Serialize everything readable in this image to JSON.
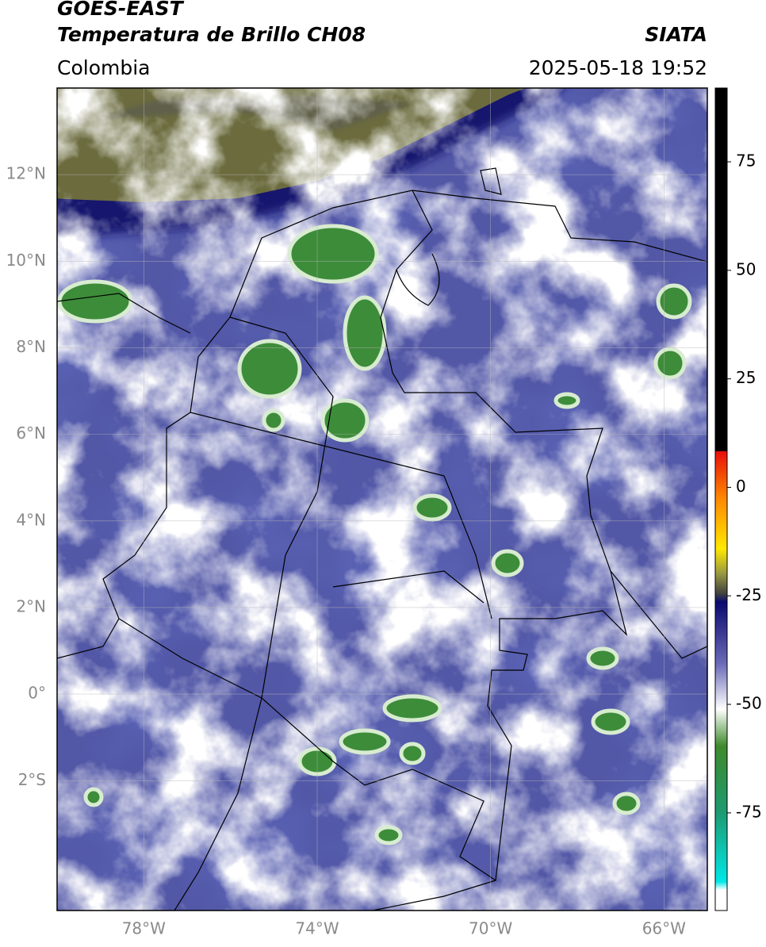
{
  "header": {
    "satellite": "GOES-EAST",
    "product": "Temperatura de Brillo CH08",
    "source": "SIATA",
    "region": "Colombia",
    "datetime": "2025-05-18 19:52"
  },
  "map": {
    "lon_range": [
      -80,
      -65
    ],
    "lat_range": [
      -5,
      14
    ],
    "lat_ticks": [
      {
        "value": 12,
        "label": "12°N"
      },
      {
        "value": 10,
        "label": "10°N"
      },
      {
        "value": 8,
        "label": "8°N"
      },
      {
        "value": 6,
        "label": "6°N"
      },
      {
        "value": 4,
        "label": "4°N"
      },
      {
        "value": 2,
        "label": "2°N"
      },
      {
        "value": 0,
        "label": "0°"
      },
      {
        "value": -2,
        "label": "2°S"
      }
    ],
    "lon_ticks": [
      {
        "value": -78,
        "label": "78°W"
      },
      {
        "value": -74,
        "label": "74°W"
      },
      {
        "value": -70,
        "label": "70°W"
      },
      {
        "value": -66,
        "label": "66°W"
      }
    ]
  },
  "colorbar": {
    "range": [
      -97.5,
      92
    ],
    "ticks": [
      75,
      50,
      25,
      0,
      -25,
      -50,
      -75
    ]
  }
}
